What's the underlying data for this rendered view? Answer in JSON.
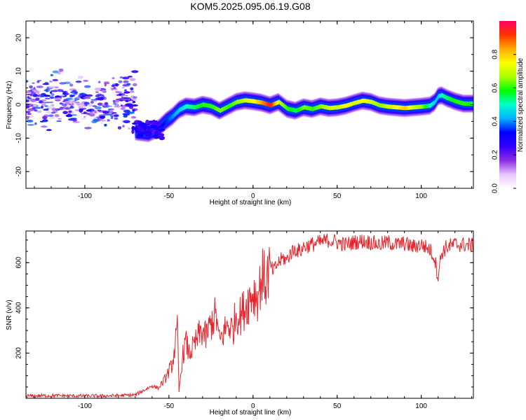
{
  "figure": {
    "title": "KOM5.2025.095.06.19.G08"
  },
  "chart_data": [
    {
      "type": "heatmap",
      "xlabel": "Height of straight line (km)",
      "ylabel": "Frequency (Hz)",
      "xlim": [
        -135,
        131
      ],
      "ylim": [
        -25,
        25
      ],
      "xticks": [
        -100,
        -50,
        0,
        50,
        100
      ],
      "yticks": [
        -20,
        -10,
        0,
        10,
        20
      ],
      "colorbar": {
        "label": "Normalized spectral amplitude",
        "range": [
          0.0,
          1.0
        ],
        "ticks": [
          0.0,
          0.2,
          0.4,
          0.6,
          0.8
        ],
        "colormap": [
          "#ffffff",
          "#e8c4ff",
          "#8a2be2",
          "#3300ff",
          "#0000ff",
          "#00b0ff",
          "#00ffcc",
          "#00ff00",
          "#aaff00",
          "#ffff00",
          "#ffaa00",
          "#ff3300",
          "#ff0066"
        ]
      },
      "ridge": {
        "x": [
          -70,
          -62,
          -56,
          -52,
          -48,
          -44,
          -40,
          -35,
          -30,
          -25,
          -20,
          -15,
          -10,
          -5,
          0,
          5,
          10,
          15,
          20,
          25,
          30,
          35,
          40,
          45,
          50,
          55,
          60,
          65,
          70,
          75,
          80,
          85,
          90,
          95,
          100,
          105,
          108,
          110,
          112,
          115,
          120,
          125,
          131
        ],
        "y": [
          -8,
          -8.5,
          -7,
          -5,
          -3.5,
          -1.5,
          -0.5,
          -0.8,
          0,
          -0.5,
          -1.8,
          -0.5,
          0.8,
          1.3,
          1.0,
          0.6,
          -0.2,
          0.8,
          -1.2,
          -1.8,
          -0.8,
          -1.3,
          -0.5,
          -1.0,
          -0.8,
          -0.3,
          0.5,
          1.2,
          0.8,
          -0.2,
          -0.6,
          -0.8,
          -1.0,
          -0.8,
          -0.6,
          -0.3,
          0.8,
          2.5,
          2.8,
          2.0,
          1.0,
          0.3,
          0.3
        ],
        "amp": [
          0.35,
          0.3,
          0.3,
          0.35,
          0.4,
          0.45,
          0.5,
          0.55,
          0.6,
          0.6,
          0.65,
          0.6,
          0.65,
          0.7,
          0.75,
          0.85,
          0.95,
          0.7,
          0.6,
          0.55,
          0.65,
          0.6,
          0.65,
          0.7,
          0.7,
          0.75,
          0.7,
          0.75,
          0.7,
          0.65,
          0.7,
          0.75,
          0.8,
          0.7,
          0.65,
          0.5,
          0.45,
          0.45,
          0.5,
          0.55,
          0.6,
          0.6,
          0.55
        ]
      },
      "noise_region": {
        "x_range": [
          -135,
          -70
        ],
        "y_range": [
          -10,
          12
        ],
        "max_amp": 0.25
      }
    },
    {
      "type": "line",
      "xlabel": "Height of straight line (km)",
      "ylabel": "SNR (v/v)",
      "xlim": [
        -135,
        131
      ],
      "ylim": [
        0,
        740
      ],
      "xticks": [
        -100,
        -50,
        0,
        50,
        100
      ],
      "yticks": [
        200,
        400,
        600
      ],
      "color": "#e8242c",
      "series": [
        {
          "x": [
            -135,
            -120,
            -100,
            -90,
            -80,
            -70,
            -65,
            -60,
            -56,
            -52,
            -48,
            -45,
            -44,
            -42,
            -40,
            -38,
            -35,
            -32,
            -30,
            -28,
            -25,
            -22,
            -20,
            -18,
            -15,
            -12,
            -10,
            -8,
            -5,
            -3,
            0,
            3,
            5,
            8,
            10,
            12,
            15,
            18,
            20,
            22,
            25,
            28,
            30,
            35,
            40,
            45,
            50,
            55,
            60,
            65,
            70,
            75,
            80,
            85,
            90,
            95,
            100,
            105,
            108,
            110,
            112,
            115,
            120,
            125,
            131
          ],
          "y": [
            10,
            12,
            10,
            10,
            12,
            15,
            35,
            55,
            45,
            90,
            150,
            300,
            30,
            180,
            250,
            200,
            230,
            280,
            300,
            270,
            330,
            370,
            250,
            280,
            330,
            300,
            380,
            360,
            400,
            430,
            470,
            450,
            540,
            520,
            590,
            560,
            600,
            620,
            610,
            640,
            660,
            650,
            670,
            680,
            690,
            700,
            690,
            680,
            690,
            695,
            690,
            680,
            690,
            680,
            685,
            670,
            680,
            660,
            620,
            540,
            640,
            670,
            680,
            680,
            675
          ]
        }
      ]
    }
  ]
}
